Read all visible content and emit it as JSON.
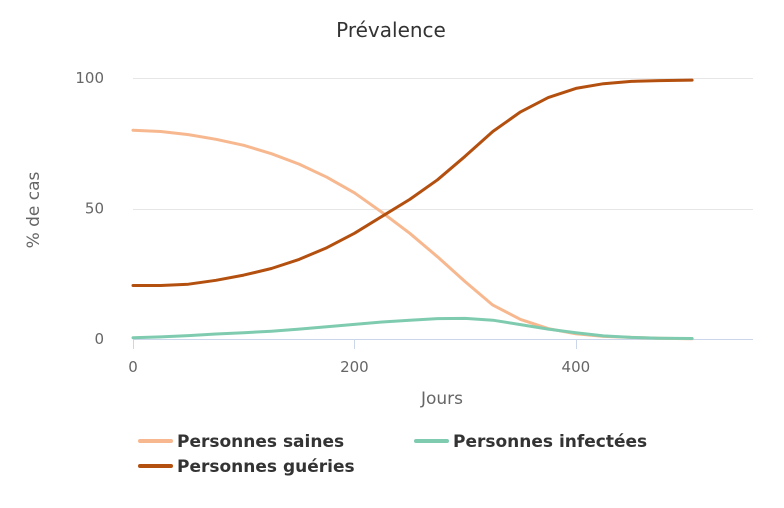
{
  "chart_data": {
    "type": "line",
    "title": "Prévalence",
    "xlabel": "Jours",
    "ylabel": "% de cas",
    "xlim": [
      0,
      560
    ],
    "ylim": [
      0,
      100
    ],
    "x_ticks": [
      0,
      200,
      400
    ],
    "y_ticks": [
      0,
      50,
      100
    ],
    "grid": true,
    "legend_position": "bottom-left",
    "series": [
      {
        "name": "Personnes saines",
        "color": "#f7b88f",
        "x": [
          0,
          25,
          50,
          75,
          100,
          125,
          150,
          175,
          200,
          225,
          250,
          275,
          300,
          325,
          350,
          375,
          400,
          425,
          450,
          475,
          505
        ],
        "values": [
          80,
          79.5,
          78.3,
          76.5,
          74.2,
          71,
          67,
          62,
          56,
          48.5,
          40.5,
          31.5,
          22,
          13,
          7.5,
          4,
          2,
          1,
          0.6,
          0.3,
          0.1
        ]
      },
      {
        "name": "Personnes infectées",
        "color": "#7fcbb0",
        "x": [
          0,
          25,
          50,
          75,
          100,
          125,
          150,
          175,
          200,
          225,
          250,
          275,
          300,
          325,
          350,
          375,
          400,
          425,
          450,
          475,
          505
        ],
        "values": [
          0.5,
          0.8,
          1.3,
          1.9,
          2.4,
          3,
          3.8,
          4.7,
          5.6,
          6.5,
          7.2,
          7.8,
          7.9,
          7.2,
          5.5,
          3.8,
          2.4,
          1.2,
          0.6,
          0.3,
          0.2
        ]
      },
      {
        "name": "Personnes guéries",
        "color": "#b4500f",
        "x": [
          0,
          25,
          50,
          75,
          100,
          125,
          150,
          175,
          200,
          225,
          250,
          275,
          300,
          325,
          350,
          375,
          400,
          425,
          450,
          475,
          505
        ],
        "values": [
          20.5,
          20.5,
          21,
          22.5,
          24.5,
          27,
          30.5,
          35,
          40.5,
          47,
          53.5,
          61,
          70,
          79.5,
          87,
          92.5,
          96,
          97.8,
          98.7,
          99,
          99.2
        ]
      }
    ]
  }
}
